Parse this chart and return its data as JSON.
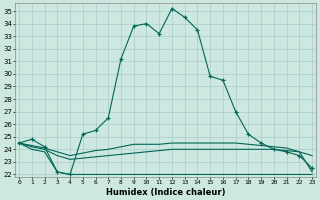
{
  "title": "",
  "xlabel": "Humidex (Indice chaleur)",
  "bg_color": "#cce8e0",
  "grid_color": "#aacccc",
  "line_color": "#006655",
  "ylim": [
    21.8,
    35.6
  ],
  "yticks": [
    22,
    23,
    24,
    25,
    26,
    27,
    28,
    29,
    30,
    31,
    32,
    33,
    34,
    35
  ],
  "xlim": [
    -0.3,
    23.3
  ],
  "series": {
    "main": [
      24.5,
      24.8,
      24.2,
      22.2,
      22.0,
      25.2,
      25.5,
      26.5,
      31.2,
      33.8,
      34.0,
      33.2,
      35.2,
      34.5,
      33.5,
      29.8,
      29.5,
      27.0,
      25.2,
      24.5,
      24.0,
      23.8,
      23.5,
      22.5
    ],
    "min_line": [
      24.5,
      24.0,
      23.8,
      22.2,
      22.0,
      22.0,
      22.0,
      22.0,
      22.0,
      22.0,
      22.0,
      22.0,
      22.0,
      22.0,
      22.0,
      22.0,
      22.0,
      22.0,
      22.0,
      22.0,
      22.0,
      22.0,
      22.0,
      22.0
    ],
    "mean_line": [
      24.5,
      24.2,
      24.0,
      23.5,
      23.2,
      23.3,
      23.4,
      23.5,
      23.6,
      23.7,
      23.8,
      23.9,
      24.0,
      24.0,
      24.0,
      24.0,
      24.0,
      24.0,
      24.0,
      24.0,
      24.0,
      23.9,
      23.8,
      23.5
    ],
    "max_line": [
      24.5,
      24.3,
      24.1,
      23.8,
      23.5,
      23.7,
      23.9,
      24.0,
      24.2,
      24.4,
      24.4,
      24.4,
      24.5,
      24.5,
      24.5,
      24.5,
      24.5,
      24.5,
      24.4,
      24.3,
      24.2,
      24.1,
      23.8,
      22.2
    ]
  }
}
